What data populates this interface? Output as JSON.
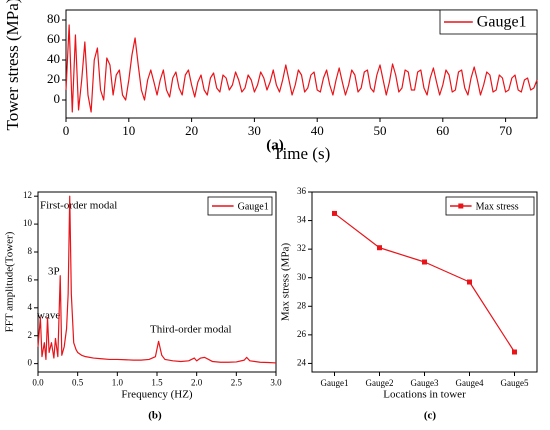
{
  "chart_data": [
    {
      "type": "line",
      "panel_label": "(a)",
      "xlabel": "Time (s)",
      "ylabel": "Tower stress (MPa)",
      "legend": "upper right",
      "grid": false,
      "xlim": [
        0,
        75
      ],
      "xticks": [
        0,
        10,
        20,
        30,
        40,
        50,
        60,
        70
      ],
      "ylim": [
        -18,
        90
      ],
      "yticks": [
        0,
        20,
        40,
        60,
        80
      ],
      "x": [
        0,
        0.5,
        1,
        1.5,
        2,
        2.5,
        3,
        3.5,
        4,
        4.5,
        5,
        5.5,
        6,
        6.5,
        7,
        7.5,
        8,
        8.5,
        9,
        9.5,
        10,
        10.5,
        11,
        11.5,
        12,
        12.5,
        13,
        13.5,
        14,
        14.5,
        15,
        15.5,
        16,
        16.5,
        17,
        17.5,
        18,
        18.5,
        19,
        19.5,
        20,
        20.5,
        21,
        21.5,
        22,
        22.5,
        23,
        23.5,
        24,
        24.5,
        25,
        25.5,
        26,
        26.5,
        27,
        27.5,
        28,
        28.5,
        29,
        29.5,
        30,
        30.5,
        31,
        31.5,
        32,
        32.5,
        33,
        33.5,
        34,
        34.5,
        35,
        35.5,
        36,
        36.5,
        37,
        37.5,
        38,
        38.5,
        39,
        39.5,
        40,
        40.5,
        41,
        41.5,
        42,
        42.5,
        43,
        43.5,
        44,
        44.5,
        45,
        45.5,
        46,
        46.5,
        47,
        47.5,
        48,
        48.5,
        49,
        49.5,
        50,
        50.5,
        51,
        51.5,
        52,
        52.5,
        53,
        53.5,
        54,
        54.5,
        55,
        55.5,
        56,
        56.5,
        57,
        57.5,
        58,
        58.5,
        59,
        59.5,
        60,
        60.5,
        61,
        61.5,
        62,
        62.5,
        63,
        63.5,
        64,
        64.5,
        65,
        65.5,
        66,
        66.5,
        67,
        67.5,
        68,
        68.5,
        69,
        69.5,
        70,
        70.5,
        71,
        71.5,
        72,
        72.5,
        73,
        73.5,
        74,
        74.5,
        75
      ],
      "series": [
        {
          "name": "Gauge1",
          "color": "#e8141a",
          "values": [
            10,
            75,
            -12,
            65,
            -10,
            20,
            58,
            5,
            -12,
            40,
            52,
            10,
            0,
            42,
            35,
            5,
            25,
            30,
            5,
            0,
            20,
            45,
            62,
            35,
            10,
            0,
            20,
            30,
            18,
            5,
            20,
            30,
            10,
            3,
            22,
            28,
            12,
            5,
            25,
            30,
            15,
            3,
            18,
            25,
            10,
            5,
            22,
            27,
            12,
            8,
            25,
            22,
            10,
            15,
            28,
            20,
            8,
            12,
            25,
            20,
            8,
            15,
            28,
            22,
            10,
            18,
            30,
            15,
            8,
            20,
            35,
            20,
            5,
            15,
            30,
            25,
            8,
            12,
            25,
            28,
            10,
            8,
            22,
            30,
            15,
            5,
            20,
            32,
            18,
            5,
            15,
            30,
            25,
            8,
            12,
            28,
            30,
            12,
            8,
            25,
            35,
            20,
            5,
            18,
            36,
            25,
            8,
            12,
            30,
            28,
            10,
            10,
            28,
            30,
            12,
            5,
            22,
            32,
            18,
            5,
            15,
            30,
            25,
            8,
            10,
            28,
            30,
            12,
            5,
            22,
            33,
            20,
            5,
            15,
            28,
            25,
            8,
            10,
            25,
            22,
            8,
            10,
            22,
            25,
            10,
            8,
            20,
            22,
            10,
            12,
            20
          ]
        }
      ]
    },
    {
      "type": "line",
      "panel_label": "(b)",
      "xlabel": "Frequency (HZ)",
      "ylabel": "FFT amplitude(Tower)",
      "legend": "upper right",
      "grid": false,
      "xlim": [
        0,
        3
      ],
      "xticks": [
        {
          "value": 0,
          "label": "0.0"
        },
        0.5,
        {
          "value": 1,
          "label": "1.0"
        },
        1.5,
        {
          "value": 2,
          "label": "2.0"
        },
        2.5,
        {
          "value": 3,
          "label": "3.0"
        }
      ],
      "ylim": [
        -0.6,
        12.3
      ],
      "yticks": [
        0,
        2,
        4,
        6,
        8,
        10,
        12
      ],
      "annotations": [
        "First-order modal",
        "3P",
        "wave",
        "Third-order modal"
      ],
      "x": [
        0,
        0.03,
        0.05,
        0.08,
        0.1,
        0.12,
        0.14,
        0.17,
        0.2,
        0.22,
        0.25,
        0.28,
        0.3,
        0.33,
        0.36,
        0.38,
        0.4,
        0.42,
        0.45,
        0.48,
        0.5,
        0.55,
        0.6,
        0.7,
        0.8,
        0.9,
        1.0,
        1.1,
        1.2,
        1.3,
        1.4,
        1.48,
        1.52,
        1.56,
        1.6,
        1.7,
        1.8,
        1.9,
        1.97,
        2.0,
        2.05,
        2.1,
        2.15,
        2.2,
        2.3,
        2.4,
        2.5,
        2.6,
        2.63,
        2.67,
        2.8,
        2.9,
        3.0
      ],
      "series": [
        {
          "name": "Gauge1",
          "color": "#e8141a",
          "values": [
            1.2,
            3.3,
            0.5,
            1.5,
            0.3,
            3.3,
            0.8,
            1.5,
            0.4,
            1.8,
            0.5,
            6.3,
            0.6,
            1.2,
            2.5,
            5,
            12,
            5,
            1.5,
            1.0,
            0.8,
            0.6,
            0.5,
            0.4,
            0.35,
            0.3,
            0.3,
            0.28,
            0.25,
            0.25,
            0.3,
            0.5,
            1.6,
            0.6,
            0.3,
            0.2,
            0.15,
            0.2,
            0.4,
            0.2,
            0.4,
            0.45,
            0.3,
            0.15,
            0.1,
            0.1,
            0.12,
            0.25,
            0.45,
            0.2,
            0.1,
            0.08,
            0.05
          ]
        }
      ]
    },
    {
      "type": "line",
      "panel_label": "(c)",
      "xlabel": "Locations in  tower",
      "ylabel": "Max stress (MPa)",
      "legend": "upper right",
      "grid": false,
      "marker": "square",
      "categories": [
        "Gauge1",
        "Gauge2",
        "Gauge3",
        "Gauge4",
        "Gauge5"
      ],
      "ylim": [
        23.4,
        36
      ],
      "yticks": [
        24,
        26,
        28,
        30,
        32,
        34,
        36
      ],
      "series": [
        {
          "name": "Max stress",
          "color": "#e8141a",
          "values": [
            34.5,
            32.1,
            31.1,
            29.7,
            24.8
          ]
        }
      ]
    }
  ]
}
